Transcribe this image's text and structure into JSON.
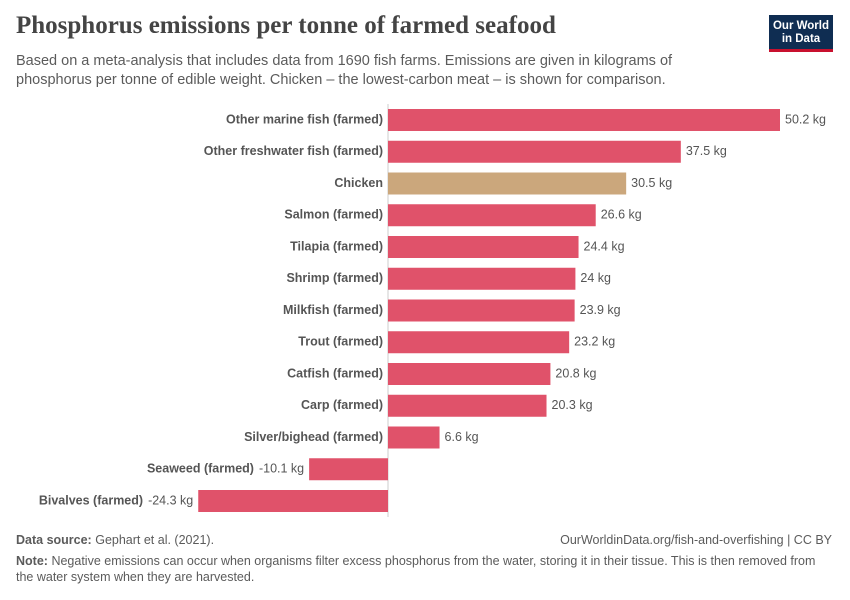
{
  "chart_data": {
    "type": "bar",
    "orientation": "horizontal",
    "title": "Phosphorus emissions per tonne of farmed seafood",
    "subtitle": "Based on a meta-analysis that includes data from 1690 fish farms. Emissions are given in kilograms of phosphorus per tonne of edible weight. Chicken – the lowest-carbon meat – is shown for comparison.",
    "logo": [
      "Our World",
      "in Data"
    ],
    "categories": [
      "Other marine fish (farmed)",
      "Other freshwater fish (farmed)",
      "Chicken",
      "Salmon (farmed)",
      "Tilapia (farmed)",
      "Shrimp (farmed)",
      "Milkfish (farmed)",
      "Trout (farmed)",
      "Catfish (farmed)",
      "Carp (farmed)",
      "Silver/bighead (farmed)",
      "Seaweed (farmed)",
      "Bivalves (farmed)"
    ],
    "values": [
      50.2,
      37.5,
      30.5,
      26.6,
      24.4,
      24,
      23.9,
      23.2,
      20.8,
      20.3,
      6.6,
      -10.1,
      -24.3
    ],
    "value_labels": [
      "50.2 kg",
      "37.5 kg",
      "30.5 kg",
      "26.6 kg",
      "24.4 kg",
      "24 kg",
      "23.9 kg",
      "23.2 kg",
      "20.8 kg",
      "20.3 kg",
      "6.6 kg",
      "-10.1 kg",
      "-24.3 kg"
    ],
    "colors": [
      "#e0526a",
      "#e0526a",
      "#cba77c",
      "#e0526a",
      "#e0526a",
      "#e0526a",
      "#e0526a",
      "#e0526a",
      "#e0526a",
      "#e0526a",
      "#e0526a",
      "#e0526a",
      "#e0526a"
    ],
    "source_label": "Data source:",
    "source": "Gephart et al. (2021).",
    "url": "OurWorldinData.org/fish-and-overfishing | CC BY",
    "note_label": "Note:",
    "note": "Negative emissions can occur when organisms filter excess phosphorus from the water, storing it in their tissue. This is then removed from the water system when they are harvested."
  }
}
